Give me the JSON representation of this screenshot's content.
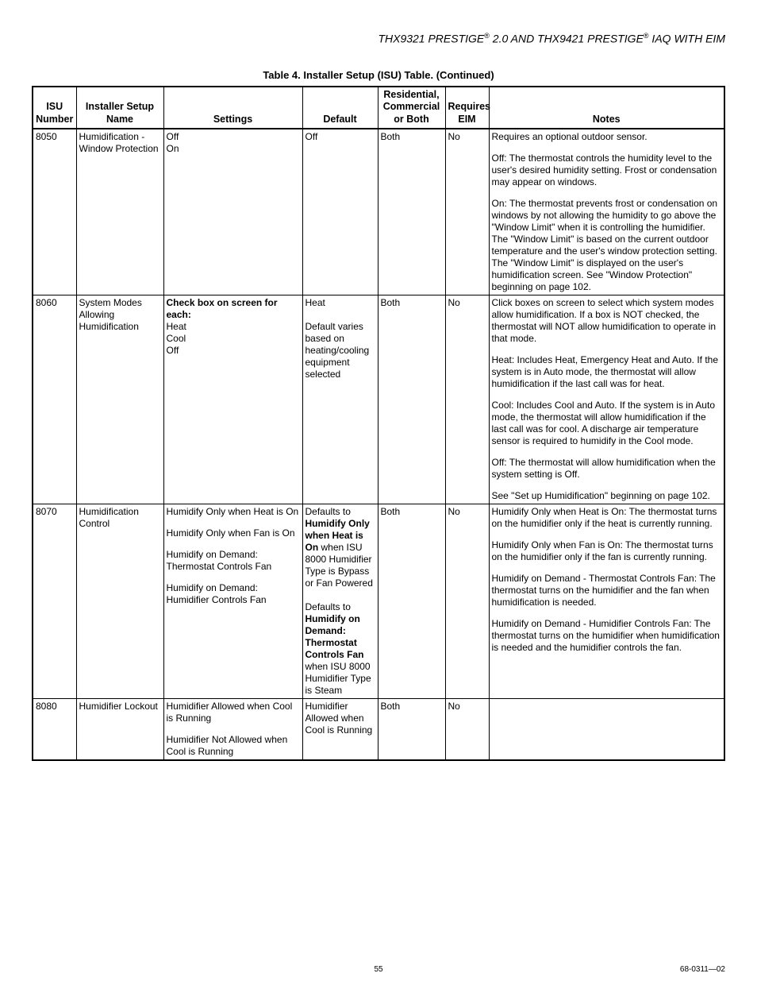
{
  "page": {
    "header_html": "THX9321 PRESTIGE<sup>®</sup> 2.0 AND THX9421 PRESTIGE<sup>®</sup> IAQ WITH EIM",
    "table_caption": "Table 4. Installer Setup (ISU) Table. (Continued)",
    "page_number": "55",
    "doc_number": "68-0311—02"
  },
  "columns": [
    {
      "label": "ISU Number"
    },
    {
      "label": "Installer Setup Name"
    },
    {
      "label": "Settings"
    },
    {
      "label": "Default"
    },
    {
      "label": "Residential, Commercial or Both"
    },
    {
      "label": "Requires EIM"
    },
    {
      "label": "Notes"
    }
  ],
  "rows": [
    {
      "num": "8050",
      "name": "Humidification - Window Protection",
      "settings_html": "Off<br>On",
      "default_html": "Off",
      "scope": "Both",
      "eim": "No",
      "notes_html": "<p class=\"para\">Requires an optional outdoor sensor.</p><p class=\"para\">Off: The thermostat controls the humidity level to the user's desired humidity setting. Frost or condensation may appear on windows.</p><p class=\"para\">On: The thermostat prevents frost or condensation on windows by not allowing the humidity to go above the \"Window Limit\" when it is controlling the humidifier. The \"Window Limit\" is based on the current outdoor temperature and the user's window protection setting. The \"Window Limit\" is displayed on the user's humidification screen. See \"Window Protection\" beginning on page 102.</p>"
    },
    {
      "num": "8060",
      "name": "System Modes Allowing Humidification",
      "settings_html": "<span class=\"bold\">Check box on screen for each:</span><br>Heat<br>Cool<br>Off",
      "default_html": "Heat<br><br>Default varies based on heating/cooling equipment selected",
      "scope": "Both",
      "eim": "No",
      "notes_html": "<p class=\"para\">Click boxes on screen to select which system modes allow humidification. If a box is NOT checked, the thermostat will NOT allow humidification to operate in that mode.</p><p class=\"para\">Heat: Includes Heat, Emergency Heat and Auto. If the system is in Auto mode, the thermostat will allow humidification if the last call was for heat.</p><p class=\"para\">Cool: Includes Cool and Auto. If the system is in Auto mode, the thermostat will allow humidification if the last call was for cool. A discharge air temperature sensor is required to humidify in the Cool mode.</p><p class=\"para\">Off: The thermostat will allow humidification when the system setting is Off.</p><p class=\"para\">See \"Set up Humidification\" beginning on page 102.</p>"
    },
    {
      "num": "8070",
      "name": "Humidification Control",
      "settings_html": "<p class=\"para\">Humidify Only when Heat is On</p><p class=\"para\">Humidify Only when Fan is On</p><p class=\"para\">Humidify on Demand: Thermostat Controls Fan</p><p class=\"para\">Humidify on Demand: Humidifier Controls Fan</p>",
      "default_html": "Defaults to <span class=\"bold\">Humidify Only when Heat is On</span> when ISU 8000 Humidifier Type is Bypass or Fan Powered<br><br>Defaults to <span class=\"bold\">Humidify on Demand: Thermostat Controls Fan</span> when ISU 8000 Humidifier Type is Steam",
      "scope": "Both",
      "eim": "No",
      "notes_html": "<p class=\"para\">Humidify Only when Heat is On: The thermostat turns on the humidifier only if the heat is currently running.</p><p class=\"para\">Humidify Only when Fan is On: The thermostat turns on the humidifier only if the fan is currently running.</p><p class=\"para\">Humidify on Demand - Thermostat Controls Fan: The thermostat turns on the humidifier and the fan when humidification is needed.</p><p class=\"para\">Humidify on Demand - Humidifier Controls Fan: The thermostat turns on the humidifier when humidification is needed and the humidifier controls the fan.</p>"
    },
    {
      "num": "8080",
      "name": "Humidifier Lockout",
      "settings_html": "<p class=\"para\">Humidifier Allowed when Cool is Running</p><p class=\"para\">Humidifier Not Allowed when Cool is Running</p>",
      "default_html": "Humidifier Allowed when Cool is Running",
      "scope": "Both",
      "eim": "No",
      "notes_html": ""
    }
  ]
}
